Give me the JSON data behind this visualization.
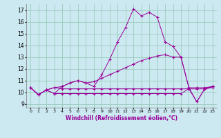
{
  "xlabel": "Windchill (Refroidissement éolien,°C)",
  "background_color": "#cce8f0",
  "grid_color": "#99ccbb",
  "line_color": "#990099",
  "x_values": [
    0,
    1,
    2,
    3,
    4,
    5,
    6,
    7,
    8,
    9,
    10,
    11,
    12,
    13,
    14,
    15,
    16,
    17,
    18,
    19,
    20,
    21,
    22,
    23
  ],
  "xlim": [
    -0.5,
    23.5
  ],
  "ylim": [
    8.7,
    17.5
  ],
  "yticks": [
    9,
    10,
    11,
    12,
    13,
    14,
    15,
    16,
    17
  ],
  "series1": [
    10.4,
    9.8,
    10.2,
    9.9,
    10.5,
    10.8,
    11.0,
    10.8,
    10.5,
    11.5,
    12.8,
    14.3,
    15.5,
    17.1,
    16.5,
    16.8,
    16.4,
    14.3,
    13.9,
    13.0,
    10.4,
    9.2,
    10.3,
    10.5
  ],
  "series2": [
    10.4,
    9.8,
    10.2,
    10.4,
    10.5,
    10.8,
    11.0,
    10.8,
    10.9,
    11.2,
    11.5,
    11.8,
    12.1,
    12.4,
    12.7,
    12.9,
    13.1,
    13.2,
    13.0,
    13.0,
    10.4,
    10.4,
    10.4,
    10.5
  ],
  "series3": [
    10.4,
    9.8,
    10.2,
    10.4,
    10.3,
    10.3,
    10.3,
    10.3,
    10.3,
    10.3,
    10.3,
    10.3,
    10.3,
    10.3,
    10.3,
    10.3,
    10.3,
    10.3,
    10.3,
    10.3,
    10.3,
    10.3,
    10.3,
    10.4
  ],
  "series4": [
    10.4,
    9.8,
    10.2,
    9.9,
    9.9,
    9.9,
    9.9,
    9.9,
    9.9,
    9.9,
    9.9,
    9.9,
    9.9,
    9.9,
    9.9,
    9.9,
    9.9,
    9.9,
    9.9,
    9.9,
    10.3,
    9.2,
    10.3,
    10.5
  ]
}
